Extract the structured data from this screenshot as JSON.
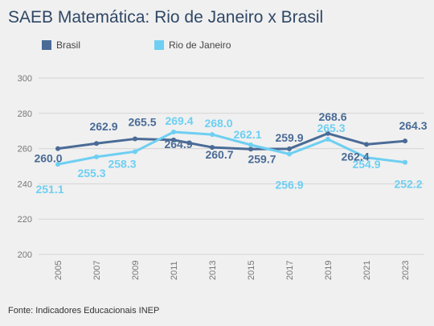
{
  "chart_data": {
    "type": "line",
    "title": "SAEB Matemática: Rio de Janeiro x Brasil",
    "xlabel": "",
    "ylabel": "",
    "ylim": [
      200,
      300
    ],
    "yticks": [
      200,
      220,
      240,
      260,
      280,
      300
    ],
    "categories": [
      "2005",
      "2007",
      "2009",
      "2011",
      "2013",
      "2015",
      "2017",
      "2019",
      "2021",
      "2023"
    ],
    "legend_position": "top-left",
    "grid": true,
    "series": [
      {
        "name": "Brasil",
        "color": "#4a6b96",
        "values": [
          260.0,
          262.9,
          265.5,
          264.9,
          260.7,
          259.7,
          259.9,
          268.6,
          262.4,
          264.3
        ],
        "labels": [
          "260.0",
          "262.9",
          "265.5",
          "264.9",
          "260.7",
          "259.7",
          "259.9",
          "268.6",
          "262.4",
          "264.3"
        ]
      },
      {
        "name": "Rio de Janeiro",
        "color": "#6ecff2",
        "values": [
          251.1,
          255.3,
          258.3,
          269.4,
          268.0,
          262.1,
          256.9,
          265.3,
          254.9,
          252.2
        ],
        "labels": [
          "251.1",
          "255.3",
          "258.3",
          "269.4",
          "268.0",
          "262.1",
          "256.9",
          "265.3",
          "254.9",
          "252.2"
        ]
      }
    ]
  },
  "footer": {
    "source": "Fonte: Indicadores Educacionais INEP"
  }
}
